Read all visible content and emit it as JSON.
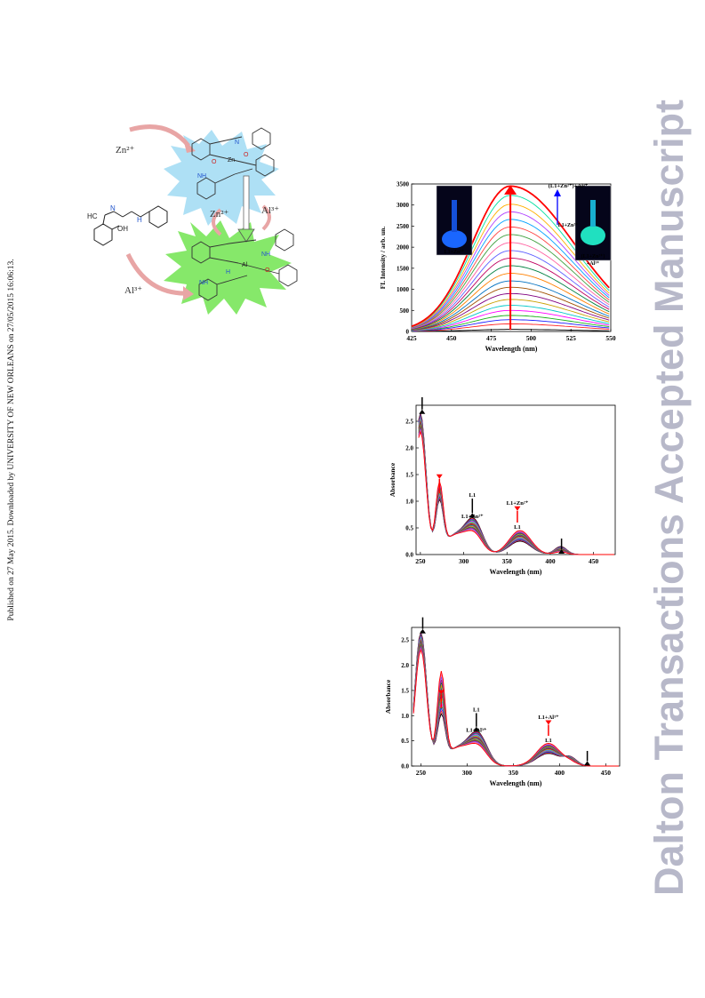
{
  "sidebar_note": "Published on 27 May 2015. Downloaded by UNIVERSITY OF NEW ORLEANS on 27/05/2015 16:06:13.",
  "watermark": "Dalton Transactions Accepted Manuscript",
  "scheme": {
    "arrow_labels": {
      "zn_top": "Zn²⁺",
      "zn_mid": "Zn²⁺",
      "al_mid": "Al³⁺",
      "al_bottom": "Al³⁺"
    },
    "ligand_labels": {
      "hc": "HC",
      "n": "N",
      "oh": "OH",
      "nh": "H"
    },
    "zn_complex_labels": {
      "zn": "Zn",
      "o1": "O",
      "o2": "O",
      "nh": "NH",
      "n": "N"
    },
    "al_complex_labels": {
      "al": "Al",
      "nh1": "NH",
      "nh2": "NH",
      "o": "O",
      "h": "H"
    },
    "colors": {
      "zn_star": "#aee0f5",
      "al_star": "#86e86a",
      "arrow": "#e8a5a5"
    }
  },
  "chart_data": [
    {
      "type": "line",
      "xlabel": "Wavelength (nm)",
      "ylabel": "FL Intensity / arb. un.",
      "xlim": [
        425,
        550
      ],
      "ylim": [
        0,
        3500
      ],
      "xticks": [
        425,
        450,
        475,
        500,
        525,
        550
      ],
      "yticks": [
        0,
        500,
        1000,
        1500,
        2000,
        2500,
        3000,
        3500
      ],
      "peak_x": 487,
      "series_peaks": [
        50,
        180,
        280,
        380,
        500,
        620,
        760,
        900,
        1050,
        1200,
        1380,
        1560,
        1740,
        1920,
        2110,
        2300,
        2480,
        2660,
        2840,
        3020,
        3230,
        3450
      ],
      "annotations": {
        "inset_left": "L1+Zn²⁺",
        "inset_right_top": "(L1+Zn²⁺)+Al³⁺",
        "inset_right_mid": "L1+Zn²⁺",
        "inset_right_bottom": "(L1+Zn²⁺)",
        "inset_right_bottom2": "+Al³⁺"
      }
    },
    {
      "type": "line",
      "xlabel": "Wavelength (nm)",
      "ylabel": "Absorbance",
      "xlim": [
        245,
        475
      ],
      "ylim": [
        0,
        2.8
      ],
      "xticks": [
        250,
        300,
        350,
        400,
        450
      ],
      "yticks": [
        0.0,
        0.5,
        1.0,
        1.5,
        2.0,
        2.5
      ],
      "start_x": 248,
      "curves": 16,
      "annotations": {
        "a": "L1",
        "b": "L1+Zn²⁺",
        "c": "L1+Zn²⁺",
        "d": "L1"
      }
    },
    {
      "type": "line",
      "xlabel": "Wavelength (nm)",
      "ylabel": "Absorbance",
      "xlim": [
        240,
        465
      ],
      "ylim": [
        0,
        2.75
      ],
      "xticks": [
        250,
        300,
        350,
        400,
        450
      ],
      "yticks": [
        0.0,
        0.5,
        1.0,
        1.5,
        2.0,
        2.5
      ],
      "start_x": 242,
      "curves": 16,
      "annotations": {
        "a": "L1",
        "b": "L1+Al³⁺",
        "c": "L1+Al³⁺",
        "d": "L1"
      }
    }
  ]
}
